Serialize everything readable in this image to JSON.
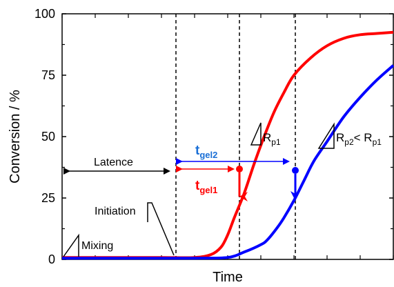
{
  "chart_data": {
    "type": "line",
    "xlabel": "Time",
    "ylabel": "Conversion / %",
    "xlim": [
      0,
      100
    ],
    "ylim": [
      0,
      100
    ],
    "yticks": [
      "0",
      "25",
      "50",
      "75",
      "100"
    ],
    "series": [
      {
        "color": "#ff0000",
        "x": [
          0,
          10,
          20,
          30,
          40,
          45,
          48,
          50,
          52,
          55,
          58,
          61,
          64,
          67,
          70,
          75,
          80,
          85,
          90,
          95,
          100
        ],
        "y": [
          0.8,
          0.8,
          0.8,
          0.8,
          0.8,
          2,
          5,
          10,
          17,
          27,
          39,
          50,
          60,
          68,
          75,
          82,
          87,
          90,
          91.5,
          92,
          92.5
        ]
      },
      {
        "color": "#0000ff",
        "x": [
          0,
          10,
          20,
          30,
          40,
          50,
          55,
          60,
          62,
          65,
          67,
          70,
          73,
          76,
          80,
          85,
          90,
          95,
          100
        ],
        "y": [
          0.5,
          0.5,
          0.5,
          0.5,
          0.5,
          0.8,
          3,
          6,
          8,
          13,
          17,
          24,
          32,
          40,
          48,
          58,
          66,
          73,
          79
        ]
      }
    ],
    "annotations": {
      "mixing": "Mixing",
      "initiation": "Initiation",
      "latence": "Latence",
      "tgel2_main": "t",
      "tgel2_sub": "gel2",
      "tgel1_main": "t",
      "tgel1_sub": "gel1",
      "rp1_main": "R",
      "rp1_sub": "p1",
      "rp2_main": "R",
      "rp2_sub": "p2",
      "rp2_lt": "< R",
      "rp2_sub2": "p1"
    },
    "colors": {
      "red": "#ff0000",
      "blue": "#0000ff",
      "blue_text": "#1a6fd6"
    }
  }
}
